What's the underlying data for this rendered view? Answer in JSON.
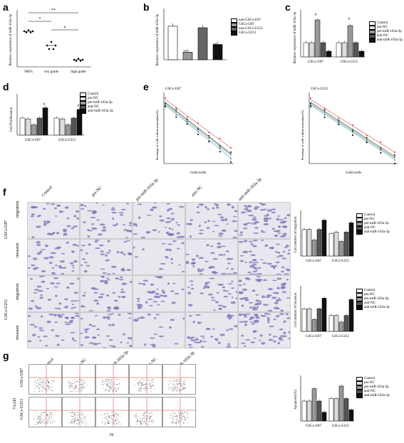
{
  "panels": {
    "a": {
      "label": "a"
    },
    "b": {
      "label": "b"
    },
    "c": {
      "label": "c"
    },
    "d": {
      "label": "d"
    },
    "e": {
      "label": "e"
    },
    "f": {
      "label": "f"
    },
    "g": {
      "label": "g"
    }
  },
  "a": {
    "ylabel": "Relative expression of miR-103a-3p",
    "categories": [
      "NBTs",
      "low grade",
      "high grade"
    ],
    "sig": [
      "**",
      "*",
      "#"
    ]
  },
  "b": {
    "ylabel": "Relative expression of miR-103a-3p",
    "sig": [
      "**",
      "##"
    ],
    "legend": [
      "non-GSCs-U87",
      "GSCs-U87",
      "non-GSCs-U251",
      "GSCs-U251"
    ]
  },
  "c": {
    "ylabel": "Relative expression of miR-103a-3p",
    "groups": [
      "GSCs-U87",
      "GSCs-U251"
    ],
    "sig": [
      "#",
      "#"
    ],
    "legend": [
      "Control",
      "pre-NC",
      "pre-miR-103a-3p",
      "anti-NC",
      "anti-miR-103a-3p"
    ]
  },
  "d": {
    "ylabel": "Cell Proliferation",
    "groups": [
      "GSCs-U87",
      "GSCs-U251"
    ],
    "sig": [
      "#",
      "#"
    ],
    "legend": [
      "Control",
      "pre-NC",
      "pre-miR-103a-3p",
      "anti-NC",
      "anti-miR-103a-3p"
    ]
  },
  "e": {
    "titles": [
      "GSCs-U87",
      "GSCs-U251"
    ],
    "ylabel": "Percentage of wells without neurosphere(%)",
    "xlabel": "Cells/wells"
  },
  "f": {
    "columns": [
      "Control",
      "pre-NC",
      "pre-miR-103a-3p",
      "anti-NC",
      "anti-miR-103a-3p"
    ],
    "cell_lines": [
      "GSCs-U87",
      "GSCs-U251"
    ],
    "rows": [
      "migration",
      "invasion",
      "migration",
      "invasion"
    ],
    "mig_ylabel": "Cell number of migration",
    "inv_ylabel": "Cell number of invasion",
    "groups": [
      "GSCs-U87",
      "GSCs-U251"
    ],
    "legend": [
      "Control",
      "pre-NC",
      "pre-miR-103a-3p",
      "anti-NC",
      "anti-miR-103a-3p"
    ]
  },
  "g": {
    "columns": [
      "Control",
      "pre-NC",
      "pre-miR-103a-3p",
      "anti-NC",
      "anti-miR-103a-3p"
    ],
    "rows": [
      "GSCs-U87",
      "GSCs-U251"
    ],
    "xaxis": "PE",
    "yaxis": "7AAD",
    "ylabel": "Apoptosis(%)",
    "groups": [
      "GSCs-U87",
      "GSCs-U251"
    ],
    "legend": [
      "Control",
      "pre-NC",
      "pre-miR-103a-3p",
      "anti-NC",
      "anti-miR-103a-3p"
    ]
  },
  "chart_data": [
    {
      "id": "a",
      "type": "scatter",
      "categories": [
        "NBTs",
        "low grade",
        "high grade"
      ],
      "values": [
        1.0,
        0.6,
        0.2
      ]
    },
    {
      "id": "b",
      "type": "bar",
      "series": [
        {
          "name": "non-GSCs-U87",
          "values": [
            1.1
          ]
        },
        {
          "name": "GSCs-U87",
          "values": [
            0.25
          ]
        },
        {
          "name": "non-GSCs-U251",
          "values": [
            1.05
          ]
        },
        {
          "name": "GSCs-U251",
          "values": [
            0.5
          ]
        }
      ]
    },
    {
      "id": "c",
      "type": "bar",
      "categories": [
        "GSCs-U87",
        "GSCs-U251"
      ],
      "series": [
        {
          "name": "Control",
          "values": [
            1.0,
            1.0
          ]
        },
        {
          "name": "pre-NC",
          "values": [
            1.0,
            1.0
          ]
        },
        {
          "name": "pre-miR-103a-3p",
          "values": [
            2.6,
            2.2
          ]
        },
        {
          "name": "anti-NC",
          "values": [
            1.0,
            1.0
          ]
        },
        {
          "name": "anti-miR-103a-3p",
          "values": [
            0.4,
            0.4
          ]
        }
      ]
    },
    {
      "id": "d",
      "type": "bar",
      "categories": [
        "GSCs-U87",
        "GSCs-U251"
      ],
      "series": [
        {
          "name": "Control",
          "values": [
            1.0,
            1.0
          ]
        },
        {
          "name": "pre-NC",
          "values": [
            0.95,
            0.95
          ]
        },
        {
          "name": "pre-miR-103a-3p",
          "values": [
            0.6,
            0.6
          ]
        },
        {
          "name": "anti-NC",
          "values": [
            1.0,
            1.0
          ]
        },
        {
          "name": "anti-miR-103a-3p",
          "values": [
            1.6,
            1.5
          ]
        }
      ]
    },
    {
      "id": "f-mig",
      "type": "bar",
      "categories": [
        "GSCs-U87",
        "GSCs-U251"
      ],
      "series": [
        {
          "name": "Control",
          "values": [
            1.0,
            0.85
          ]
        },
        {
          "name": "pre-NC",
          "values": [
            1.0,
            0.9
          ]
        },
        {
          "name": "pre-miR-103a-3p",
          "values": [
            0.6,
            0.55
          ]
        },
        {
          "name": "anti-NC",
          "values": [
            1.0,
            0.9
          ]
        },
        {
          "name": "anti-miR-103a-3p",
          "values": [
            1.35,
            1.25
          ]
        }
      ]
    },
    {
      "id": "f-inv",
      "type": "bar",
      "categories": [
        "GSCs-U87",
        "GSCs-U251"
      ],
      "series": [
        {
          "name": "Control",
          "values": [
            0.85,
            0.6
          ]
        },
        {
          "name": "pre-NC",
          "values": [
            0.85,
            0.6
          ]
        },
        {
          "name": "pre-miR-103a-3p",
          "values": [
            0.45,
            0.35
          ]
        },
        {
          "name": "anti-NC",
          "values": [
            0.85,
            0.6
          ]
        },
        {
          "name": "anti-miR-103a-3p",
          "values": [
            1.25,
            1.2
          ]
        }
      ]
    },
    {
      "id": "g",
      "type": "bar",
      "categories": [
        "GSCs-U87",
        "GSCs-U251"
      ],
      "series": [
        {
          "name": "Control",
          "values": [
            0.8,
            0.9
          ]
        },
        {
          "name": "pre-NC",
          "values": [
            0.8,
            0.9
          ]
        },
        {
          "name": "pre-miR-103a-3p",
          "values": [
            1.3,
            1.4
          ]
        },
        {
          "name": "anti-NC",
          "values": [
            0.8,
            0.9
          ]
        },
        {
          "name": "anti-miR-103a-3p",
          "values": [
            0.35,
            0.45
          ]
        }
      ]
    }
  ],
  "colors": {
    "bar_fills": [
      "#ffffff",
      "#dddddd",
      "#999999",
      "#555555",
      "#111111"
    ],
    "stain": "#7a6bb5",
    "stain_bg": "#e9e6ee"
  }
}
